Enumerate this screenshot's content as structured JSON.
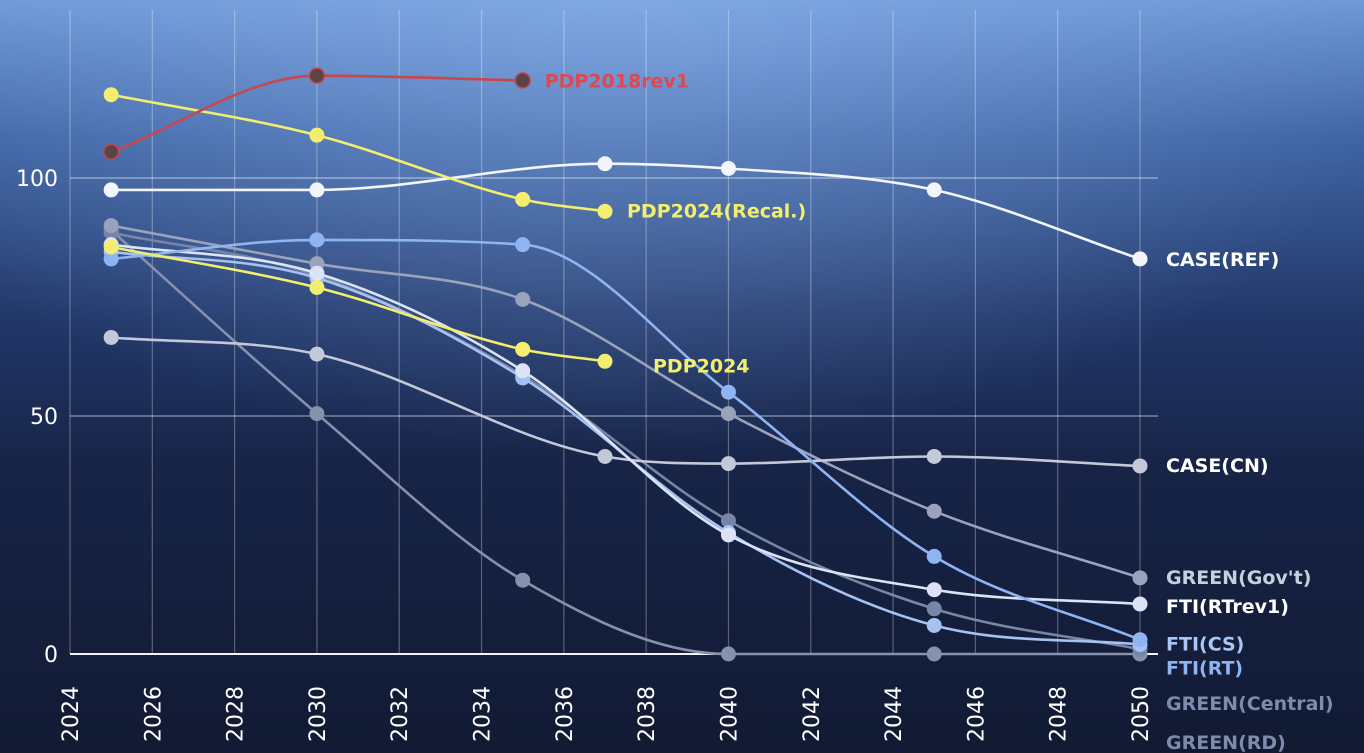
{
  "chart_data": {
    "type": "line",
    "title": "",
    "xlabel": "",
    "ylabel": "",
    "xlim": [
      2024,
      2050
    ],
    "ylim": [
      0,
      125
    ],
    "x_ticks": [
      2024,
      2026,
      2028,
      2030,
      2032,
      2034,
      2036,
      2038,
      2040,
      2042,
      2044,
      2046,
      2048,
      2050
    ],
    "y_ticks": [
      0,
      50,
      100
    ],
    "grid": true,
    "legend": "inline labels at line ends",
    "series": [
      {
        "name": "PDP2018rev1",
        "color": "#c8474d",
        "points": [
          [
            2025,
            105.5
          ],
          [
            2030,
            121.5
          ],
          [
            2035,
            120.5
          ]
        ]
      },
      {
        "name": "PDP2024(Recal.)",
        "color": "#f4ee6e",
        "points": [
          [
            2025,
            117.5
          ],
          [
            2030,
            109
          ],
          [
            2035,
            95.5
          ],
          [
            2037,
            93
          ]
        ]
      },
      {
        "name": "PDP2024",
        "color": "#f4ee6e",
        "points": [
          [
            2025,
            85.5
          ],
          [
            2030,
            77
          ],
          [
            2035,
            64
          ],
          [
            2037,
            61.5
          ]
        ]
      },
      {
        "name": "CASE(REF)",
        "color": "#f2f5fb",
        "points": [
          [
            2025,
            97.5
          ],
          [
            2030,
            97.5
          ],
          [
            2037,
            103
          ],
          [
            2040,
            102
          ],
          [
            2045,
            97.5
          ],
          [
            2050,
            83
          ]
        ]
      },
      {
        "name": "CASE(CN)",
        "color": "#c3c9d8",
        "points": [
          [
            2025,
            66.5
          ],
          [
            2030,
            63
          ],
          [
            2037,
            41.5
          ],
          [
            2040,
            40
          ],
          [
            2045,
            41.5
          ],
          [
            2050,
            39.5
          ]
        ]
      },
      {
        "name": "GREEN(Gov't)",
        "color": "#9aa3bb",
        "points": [
          [
            2025,
            90
          ],
          [
            2030,
            82
          ],
          [
            2035,
            74.5
          ],
          [
            2040,
            50.5
          ],
          [
            2045,
            30
          ],
          [
            2050,
            16
          ]
        ]
      },
      {
        "name": "FTI(RTrev1)",
        "color": "#dbe3f5",
        "points": [
          [
            2025,
            86
          ],
          [
            2030,
            80
          ],
          [
            2035,
            59.5
          ],
          [
            2040,
            25
          ],
          [
            2045,
            13.5
          ],
          [
            2050,
            10.5
          ]
        ]
      },
      {
        "name": "FTI(CS)",
        "color": "#8fb4f2",
        "points": [
          [
            2025,
            83
          ],
          [
            2030,
            87
          ],
          [
            2035,
            86
          ],
          [
            2040,
            55
          ],
          [
            2045,
            20.5
          ],
          [
            2050,
            3
          ]
        ]
      },
      {
        "name": "FTI(RT)",
        "color": "#a6c2f2",
        "points": [
          [
            2025,
            84.5
          ],
          [
            2030,
            79
          ],
          [
            2035,
            58
          ],
          [
            2040,
            25.5
          ],
          [
            2045,
            6
          ],
          [
            2050,
            2
          ]
        ]
      },
      {
        "name": "GREEN(Central)",
        "color": "#7786a6",
        "points": [
          [
            2025,
            88.5
          ],
          [
            2030,
            79.5
          ],
          [
            2035,
            58.5
          ],
          [
            2040,
            28
          ],
          [
            2045,
            9.5
          ],
          [
            2050,
            1
          ]
        ]
      },
      {
        "name": "GREEN(RD)",
        "color": "#8591ad",
        "points": [
          [
            2025,
            89
          ],
          [
            2030,
            50.5
          ],
          [
            2035,
            15.5
          ],
          [
            2040,
            0
          ],
          [
            2045,
            0
          ],
          [
            2050,
            0
          ]
        ]
      }
    ]
  }
}
